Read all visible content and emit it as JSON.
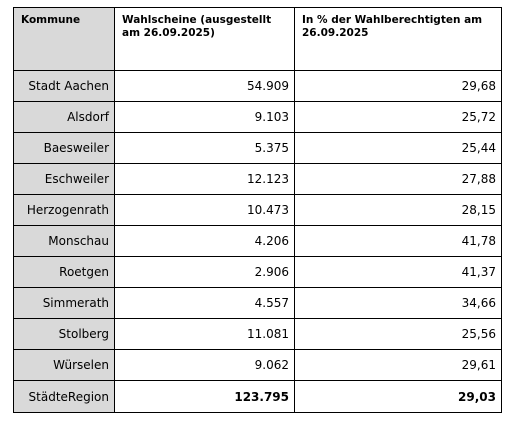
{
  "table": {
    "headers": [
      "Kommune",
      "Wahlscheine (ausgestellt am 26.09.2025)",
      "In % der Wahlberechtigten am 26.09.2025"
    ],
    "rows": [
      {
        "kommune": "Stadt Aachen",
        "wahlscheine": "54.909",
        "prozent": "29,68"
      },
      {
        "kommune": "Alsdorf",
        "wahlscheine": "9.103",
        "prozent": "25,72"
      },
      {
        "kommune": "Baesweiler",
        "wahlscheine": "5.375",
        "prozent": "25,44"
      },
      {
        "kommune": "Eschweiler",
        "wahlscheine": "12.123",
        "prozent": "27,88"
      },
      {
        "kommune": "Herzogenrath",
        "wahlscheine": "10.473",
        "prozent": "28,15"
      },
      {
        "kommune": "Monschau",
        "wahlscheine": "4.206",
        "prozent": "41,78"
      },
      {
        "kommune": "Roetgen",
        "wahlscheine": "2.906",
        "prozent": "41,37"
      },
      {
        "kommune": "Simmerath",
        "wahlscheine": "4.557",
        "prozent": "34,66"
      },
      {
        "kommune": "Stolberg",
        "wahlscheine": "11.081",
        "prozent": "25,56"
      },
      {
        "kommune": "Würselen",
        "wahlscheine": "9.062",
        "prozent": "29,61"
      }
    ],
    "total": {
      "kommune": "StädteRegion",
      "wahlscheine": "123.795",
      "prozent": "29,03"
    }
  }
}
